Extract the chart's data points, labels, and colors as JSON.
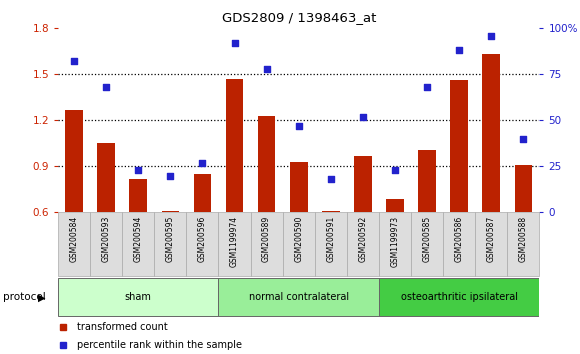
{
  "title": "GDS2809 / 1398463_at",
  "categories": [
    "GSM200584",
    "GSM200593",
    "GSM200594",
    "GSM200595",
    "GSM200596",
    "GSM1199974",
    "GSM200589",
    "GSM200590",
    "GSM200591",
    "GSM200592",
    "GSM1199973",
    "GSM200585",
    "GSM200586",
    "GSM200587",
    "GSM200588"
  ],
  "bar_values": [
    1.27,
    1.05,
    0.82,
    0.61,
    0.85,
    1.47,
    1.23,
    0.93,
    0.61,
    0.97,
    0.69,
    1.01,
    1.46,
    1.63,
    0.91
  ],
  "scatter_values": [
    82,
    68,
    23,
    20,
    27,
    92,
    78,
    47,
    18,
    52,
    23,
    68,
    88,
    96,
    40
  ],
  "bar_color": "#BB2200",
  "scatter_color": "#2222CC",
  "ylim_left": [
    0.6,
    1.8
  ],
  "ylim_right": [
    0,
    100
  ],
  "yticks_left": [
    0.6,
    0.9,
    1.2,
    1.5,
    1.8
  ],
  "yticks_right": [
    0,
    25,
    50,
    75,
    100
  ],
  "ytick_labels_right": [
    "0",
    "25",
    "50",
    "75",
    "100%"
  ],
  "hlines": [
    0.9,
    1.2,
    1.5
  ],
  "groups": [
    {
      "label": "sham",
      "start": 0,
      "end": 5,
      "color": "#CCFFCC"
    },
    {
      "label": "normal contralateral",
      "start": 5,
      "end": 10,
      "color": "#99EE99"
    },
    {
      "label": "osteoarthritic ipsilateral",
      "start": 10,
      "end": 15,
      "color": "#44CC44"
    }
  ],
  "protocol_label": "protocol",
  "legend_items": [
    {
      "label": "transformed count",
      "color": "#BB2200"
    },
    {
      "label": "percentile rank within the sample",
      "color": "#2222CC"
    }
  ],
  "background_color": "#FFFFFF",
  "tick_label_color_left": "#CC2200",
  "tick_label_color_right": "#2222CC",
  "bar_width": 0.55
}
